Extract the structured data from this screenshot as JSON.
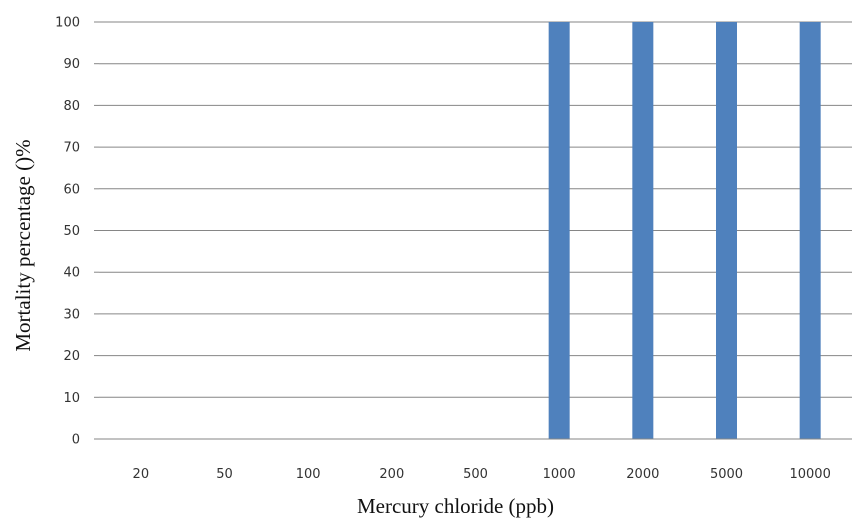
{
  "chart_data": {
    "type": "bar",
    "categories": [
      "20",
      "50",
      "100",
      "200",
      "500",
      "1000",
      "2000",
      "5000",
      "10000"
    ],
    "series": [
      {
        "values": [
          0,
          0,
          0,
          0,
          0,
          100,
          100,
          100,
          100
        ]
      }
    ],
    "xlabel": "Mercury chloride (ppb)",
    "ylabel": "Mortality percentage ()%",
    "ylim": [
      0,
      100
    ],
    "yticks": [
      "0",
      "10",
      "20",
      "30",
      "40",
      "50",
      "60",
      "70",
      "80",
      "90",
      "100"
    ],
    "grid": "horizontal",
    "bar_color": "#4f81bd"
  }
}
